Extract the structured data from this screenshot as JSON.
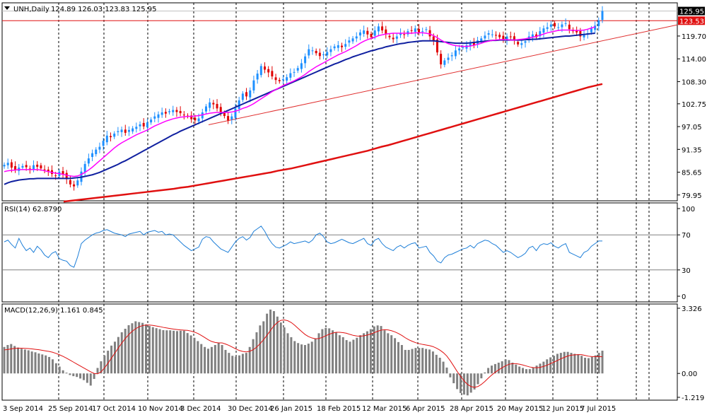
{
  "colors": {
    "background": "#ffffff",
    "grid": "#000000",
    "bull_candle": "#1e90ff",
    "bear_candle": "#e00000",
    "sma_fast": "#ff00ff",
    "sma_mid": "#1020a0",
    "sma_slow": "#e01010",
    "trendline": "#e03030",
    "resistance": "#e01010",
    "rsi_line": "#1e7fd8",
    "macd_hist": "#808080",
    "macd_signal": "#e01010",
    "price_label_bg": "#000000",
    "resistance_label_bg": "#e01010"
  },
  "chart_data": [
    {
      "type": "candlestick",
      "panel": "price",
      "title": "UNH,Daily",
      "ohlc_text": "124.89 126.03 123.83 125.95",
      "y_ticks": [
        "125.95",
        "123.53",
        "119.70",
        "114.00",
        "108.30",
        "102.75",
        "97.05",
        "91.35",
        "85.65",
        "79.95"
      ],
      "ylim": [
        78.5,
        128.0
      ],
      "current_price": 125.95,
      "resistance_level": 123.53,
      "x_labels": [
        "3 Sep 2014",
        "25 Sep 2014",
        "17 Oct 2014",
        "10 Nov 2014",
        "3 Dec 2014",
        "30 Dec 2014",
        "26 Jan 2015",
        "18 Feb 2015",
        "12 Mar 2015",
        "6 Apr 2015",
        "28 Apr 2015",
        "20 May 2015",
        "12 Jun 2015",
        "7 Jul 2015"
      ],
      "close_series": [
        87.5,
        88.0,
        86.8,
        86.2,
        86.8,
        87.2,
        86.9,
        86.5,
        87.4,
        87.0,
        86.6,
        86.3,
        85.9,
        85.2,
        84.8,
        85.8,
        85.1,
        83.9,
        82.6,
        82.1,
        83.6,
        85.8,
        87.7,
        89.1,
        90.4,
        91.3,
        92.0,
        93.5,
        94.8,
        94.4,
        95.3,
        95.9,
        96.3,
        95.5,
        96.2,
        96.6,
        97.0,
        97.6,
        97.1,
        98.1,
        98.8,
        99.6,
        100.1,
        100.6,
        100.3,
        100.9,
        101.2,
        100.7,
        100.4,
        99.9,
        99.7,
        98.9,
        98.6,
        99.1,
        100.6,
        102.1,
        103.1,
        102.6,
        101.6,
        100.7,
        99.7,
        98.6,
        99.6,
        101.6,
        103.6,
        105.3,
        104.6,
        106.1,
        108.6,
        110.3,
        112.2,
        111.3,
        110.6,
        109.6,
        108.7,
        108.4,
        108.9,
        109.4,
        110.4,
        110.7,
        111.7,
        112.9,
        114.6,
        116.4,
        116.1,
        115.4,
        114.7,
        115.1,
        115.7,
        116.4,
        117.1,
        117.4,
        116.9,
        117.7,
        118.6,
        119.1,
        119.6,
        120.6,
        121.1,
        120.1,
        119.4,
        121.1,
        122.1,
        121.1,
        120.1,
        119.4,
        118.9,
        119.6,
        120.4,
        120.1,
        120.9,
        121.1,
        121.6,
        120.6,
        120.9,
        121.4,
        119.6,
        118.6,
        115.6,
        112.6,
        113.6,
        114.3,
        114.9,
        116.1,
        116.6,
        116.9,
        117.4,
        117.9,
        117.4,
        118.6,
        119.1,
        119.8,
        120.4,
        120.1,
        119.9,
        119.4,
        118.9,
        119.6,
        119.4,
        118.6,
        117.6,
        117.9,
        118.4,
        119.6,
        120.1,
        119.4,
        120.9,
        121.6,
        121.9,
        122.6,
        122.1,
        121.9,
        122.6,
        122.9,
        121.4,
        120.9,
        120.6,
        119.6,
        120.1,
        120.4,
        121.6,
        122.3,
        123.6,
        125.95
      ],
      "sma_fast": [
        85.8,
        86.0,
        86.1,
        86.2,
        86.3,
        86.3,
        86.3,
        86.3,
        86.3,
        86.3,
        86.2,
        86.0,
        85.8,
        85.6,
        85.4,
        85.3,
        85.1,
        84.9,
        84.7,
        84.6,
        84.7,
        85.1,
        85.6,
        86.2,
        86.9,
        87.7,
        88.5,
        89.3,
        90.1,
        90.9,
        91.7,
        92.4,
        93.0,
        93.5,
        94.0,
        94.5,
        95.0,
        95.4,
        95.8,
        96.2,
        96.7,
        97.2,
        97.6,
        98.0,
        98.4,
        98.7,
        99.0,
        99.2,
        99.4,
        99.5,
        99.6,
        99.6,
        99.7,
        99.8,
        100.0,
        100.2,
        100.4,
        100.5,
        100.6,
        100.6,
        100.6,
        100.6,
        100.7,
        100.9,
        101.2,
        101.6,
        101.9,
        102.3,
        102.8,
        103.4,
        104.0,
        104.6,
        105.2,
        105.8,
        106.3,
        106.8,
        107.3,
        107.7,
        108.1,
        108.5,
        109.0,
        109.5,
        110.1,
        110.8,
        111.4,
        112.0,
        112.5,
        113.0,
        113.5,
        114.0,
        114.5,
        115.0,
        115.4,
        115.8,
        116.3,
        116.8,
        117.3,
        117.9,
        118.4,
        118.8,
        119.1,
        119.4,
        119.8,
        120.0,
        120.2,
        120.3,
        120.4,
        120.4,
        120.4,
        120.4,
        120.4,
        120.4,
        120.5,
        120.5,
        120.5,
        120.4,
        120.2,
        119.8,
        119.3,
        118.7,
        118.2,
        117.8,
        117.5,
        117.3,
        117.2,
        117.1,
        117.1,
        117.2,
        117.4,
        117.6,
        117.9,
        118.2,
        118.4,
        118.6,
        118.7,
        118.8,
        118.8,
        118.8,
        118.7,
        118.7,
        118.8,
        118.9,
        119.0,
        119.2,
        119.4,
        119.6,
        119.9,
        120.2,
        120.5,
        120.7,
        120.9,
        121.1,
        121.2,
        121.2,
        121.2,
        121.1,
        121.1,
        121.1,
        121.2,
        121.4,
        121.7,
        122.0
      ],
      "sma_mid": [
        82.6,
        83.0,
        83.3,
        83.5,
        83.7,
        83.8,
        83.9,
        84.0,
        84.0,
        84.1,
        84.1,
        84.1,
        84.1,
        84.1,
        84.1,
        84.1,
        84.1,
        84.1,
        84.1,
        84.2,
        84.3,
        84.4,
        84.6,
        84.8,
        85.0,
        85.3,
        85.6,
        86.0,
        86.4,
        86.8,
        87.2,
        87.6,
        88.1,
        88.5,
        89.0,
        89.5,
        90.0,
        90.5,
        91.0,
        91.5,
        92.0,
        92.5,
        93.0,
        93.5,
        94.0,
        94.5,
        95.0,
        95.4,
        95.9,
        96.3,
        96.7,
        97.1,
        97.5,
        97.9,
        98.3,
        98.7,
        99.1,
        99.5,
        99.9,
        100.3,
        100.7,
        101.1,
        101.5,
        101.9,
        102.3,
        102.7,
        103.1,
        103.5,
        103.9,
        104.3,
        104.7,
        105.1,
        105.5,
        105.9,
        106.3,
        106.7,
        107.1,
        107.5,
        107.9,
        108.3,
        108.7,
        109.1,
        109.5,
        109.9,
        110.3,
        110.7,
        111.1,
        111.5,
        111.9,
        112.3,
        112.7,
        113.0,
        113.4,
        113.8,
        114.1,
        114.5,
        114.8,
        115.1,
        115.4,
        115.7,
        116.0,
        116.2,
        116.5,
        116.7,
        117.0,
        117.2,
        117.4,
        117.6,
        117.8,
        117.9,
        118.1,
        118.2,
        118.3,
        118.4,
        118.5,
        118.5,
        118.5,
        118.5,
        118.4,
        118.3,
        118.2,
        118.1,
        118.0,
        117.9,
        117.9,
        117.9,
        117.9,
        118.0,
        118.1,
        118.2,
        118.3,
        118.4,
        118.5,
        118.6,
        118.6,
        118.7,
        118.7,
        118.7,
        118.7,
        118.7,
        118.7,
        118.7,
        118.8,
        118.8,
        118.9,
        118.9,
        119.0,
        119.1,
        119.2,
        119.3,
        119.4,
        119.5,
        119.6,
        119.7,
        119.7,
        119.8,
        119.9,
        120.0,
        120.1,
        120.2,
        120.3,
        120.4
      ],
      "sma_slow": [
        78.3,
        78.5,
        78.7,
        78.9,
        79.1,
        79.3,
        79.5,
        79.7,
        79.9,
        80.1,
        80.3,
        80.5,
        80.7,
        80.9,
        81.1,
        81.3,
        81.5,
        81.8,
        82.0,
        82.3,
        82.6,
        82.9,
        83.2,
        83.5,
        83.8,
        84.1,
        84.4,
        84.7,
        85.0,
        85.3,
        85.6,
        86.0,
        86.3,
        86.6,
        87.0,
        87.4,
        87.8,
        88.2,
        88.6,
        89.0,
        89.4,
        89.8,
        90.2,
        90.6,
        91.0,
        91.5,
        92.0,
        92.4,
        92.9,
        93.4,
        93.9,
        94.4,
        94.9,
        95.4,
        95.9,
        96.4,
        96.9,
        97.4,
        97.9,
        98.4,
        98.9,
        99.4,
        99.9,
        100.4,
        100.9,
        101.4,
        101.9,
        102.4,
        102.9,
        103.4,
        103.9,
        104.4,
        104.9,
        105.4,
        105.9,
        106.4,
        106.9,
        107.3,
        107.7
      ],
      "trendline": {
        "from_price": 97.5,
        "to_price": 122.5
      }
    },
    {
      "type": "line",
      "panel": "rsi",
      "title": "RSI(14) 62.8790",
      "y_ticks": [
        "100",
        "70",
        "30",
        "0"
      ],
      "ylim": [
        0,
        100
      ],
      "levels": [
        70,
        30
      ],
      "values": [
        62,
        64,
        59,
        55,
        66,
        58,
        52,
        55,
        50,
        57,
        53,
        47,
        44,
        49,
        51,
        43,
        41,
        40,
        35,
        33,
        45,
        60,
        64,
        67,
        70,
        72,
        73,
        75,
        76,
        74,
        72,
        71,
        70,
        68,
        71,
        72,
        73,
        74,
        70,
        73,
        74,
        75,
        73,
        74,
        70,
        71,
        70,
        66,
        62,
        58,
        55,
        52,
        54,
        56,
        65,
        68,
        67,
        62,
        58,
        54,
        52,
        50,
        56,
        62,
        66,
        68,
        64,
        67,
        74,
        77,
        80,
        74,
        66,
        60,
        56,
        55,
        57,
        59,
        62,
        60,
        61,
        62,
        63,
        61,
        64,
        70,
        72,
        68,
        62,
        60,
        61,
        63,
        65,
        63,
        61,
        60,
        62,
        64,
        66,
        60,
        58,
        64,
        66,
        60,
        56,
        54,
        52,
        56,
        58,
        55,
        58,
        60,
        61,
        55,
        56,
        57,
        50,
        46,
        40,
        38,
        44,
        47,
        48,
        50,
        52,
        54,
        55,
        58,
        55,
        60,
        62,
        64,
        63,
        60,
        58,
        54,
        50,
        52,
        50,
        47,
        44,
        46,
        49,
        55,
        57,
        52,
        58,
        60,
        59,
        61,
        57,
        55,
        58,
        60,
        50,
        48,
        46,
        44,
        50,
        52,
        57,
        60,
        63,
        63
      ]
    },
    {
      "type": "bar",
      "panel": "macd",
      "title": "MACD(12,26,9) 1.161 0.845",
      "y_ticks": [
        "3.326",
        "0.00",
        "-1.219"
      ],
      "ylim": [
        -1.219,
        3.326
      ],
      "histogram": [
        1.35,
        1.45,
        1.5,
        1.4,
        1.32,
        1.26,
        1.22,
        1.18,
        1.12,
        1.08,
        1.02,
        0.97,
        0.92,
        0.84,
        0.72,
        0.52,
        0.35,
        0.16,
        0.04,
        -0.08,
        -0.14,
        -0.18,
        -0.26,
        -0.34,
        -0.48,
        -0.62,
        -0.28,
        0.28,
        0.62,
        0.92,
        1.16,
        1.42,
        1.62,
        1.86,
        2.1,
        2.28,
        2.46,
        2.56,
        2.66,
        2.62,
        2.58,
        2.5,
        2.42,
        2.36,
        2.31,
        2.26,
        2.21,
        2.2,
        2.2,
        2.18,
        2.16,
        2.18,
        2.18,
        2.06,
        1.94,
        1.82,
        1.65,
        1.5,
        1.35,
        1.26,
        1.35,
        1.45,
        1.55,
        1.45,
        1.2,
        1.05,
        0.9,
        0.86,
        0.92,
        1.0,
        1.05,
        1.35,
        1.75,
        2.1,
        2.45,
        2.66,
        3.05,
        3.26,
        3.18,
        2.9,
        2.6,
        2.35,
        2.05,
        1.85,
        1.65,
        1.55,
        1.48,
        1.45,
        1.52,
        1.62,
        1.78,
        2.05,
        2.26,
        2.32,
        2.3,
        2.2,
        2.1,
        1.95,
        1.85,
        1.7,
        1.62,
        1.72,
        1.82,
        1.95,
        2.05,
        2.15,
        2.26,
        2.4,
        2.45,
        2.42,
        2.2,
        2.05,
        1.95,
        1.8,
        1.6,
        1.45,
        1.2,
        1.2,
        1.25,
        1.3,
        1.3,
        1.3,
        1.25,
        1.22,
        1.12,
        0.95,
        0.8,
        0.6,
        0.3,
        -0.2,
        -0.5,
        -0.8,
        -1.0,
        -1.08,
        -1.12,
        -0.98,
        -0.82,
        -0.55,
        -0.25,
        0.05,
        0.28,
        0.4,
        0.48,
        0.55,
        0.62,
        0.72,
        0.68,
        0.55,
        0.45,
        0.35,
        0.28,
        0.22,
        0.22,
        0.3,
        0.4,
        0.5,
        0.6,
        0.72,
        0.82,
        0.9,
        1.0,
        1.05,
        1.1,
        1.1,
        1.05,
        1.0,
        0.98,
        0.9,
        0.8,
        0.78,
        0.84,
        0.92,
        1.05,
        1.16
      ],
      "signal": [
        1.2,
        1.22,
        1.25,
        1.28,
        1.29,
        1.29,
        1.28,
        1.27,
        1.25,
        1.23,
        1.21,
        1.18,
        1.15,
        1.12,
        1.08,
        1.02,
        0.95,
        0.87,
        0.78,
        0.68,
        0.58,
        0.48,
        0.38,
        0.28,
        0.18,
        0.08,
        0.0,
        -0.02,
        0.08,
        0.28,
        0.52,
        0.78,
        1.04,
        1.3,
        1.55,
        1.78,
        1.98,
        2.15,
        2.28,
        2.38,
        2.44,
        2.47,
        2.47,
        2.45,
        2.42,
        2.39,
        2.35,
        2.32,
        2.29,
        2.26,
        2.24,
        2.22,
        2.21,
        2.2,
        2.16,
        2.11,
        2.04,
        1.94,
        1.83,
        1.72,
        1.63,
        1.58,
        1.56,
        1.56,
        1.5,
        1.43,
        1.34,
        1.25,
        1.17,
        1.12,
        1.1,
        1.13,
        1.21,
        1.34,
        1.52,
        1.72,
        1.95,
        2.19,
        2.43,
        2.6,
        2.71,
        2.73,
        2.69,
        2.6,
        2.46,
        2.3,
        2.14,
        1.99,
        1.88,
        1.81,
        1.77,
        1.78,
        1.84,
        1.92,
        2.0,
        2.06,
        2.1,
        2.1,
        2.08,
        2.05,
        1.99,
        1.94,
        1.91,
        1.9,
        1.92,
        1.96,
        2.01,
        2.08,
        2.15,
        2.21,
        2.23,
        2.22,
        2.18,
        2.12,
        2.04,
        1.94,
        1.82,
        1.72,
        1.64,
        1.57,
        1.52,
        1.48,
        1.45,
        1.42,
        1.37,
        1.29,
        1.19,
        1.06,
        0.89,
        0.65,
        0.38,
        0.1,
        -0.15,
        -0.38,
        -0.56,
        -0.67,
        -0.71,
        -0.67,
        -0.56,
        -0.41,
        -0.24,
        -0.08,
        0.06,
        0.18,
        0.29,
        0.39,
        0.47,
        0.5,
        0.5,
        0.47,
        0.43,
        0.38,
        0.33,
        0.3,
        0.29,
        0.31,
        0.36,
        0.42,
        0.5,
        0.58,
        0.66,
        0.75,
        0.82,
        0.89,
        0.93,
        0.95,
        0.96,
        0.96,
        0.92,
        0.88,
        0.86,
        0.86,
        0.86,
        0.85
      ]
    }
  ]
}
